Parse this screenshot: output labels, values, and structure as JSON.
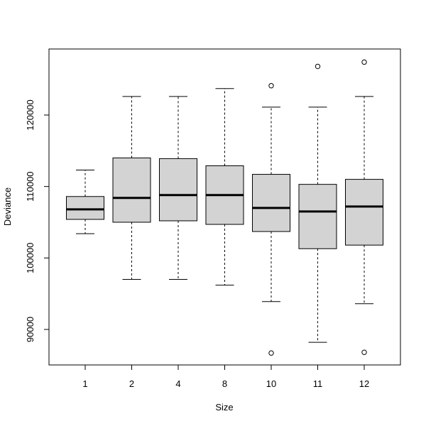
{
  "chart_data": {
    "type": "boxplot",
    "xlabel": "Size",
    "ylabel": "Deviance",
    "categories": [
      "1",
      "2",
      "4",
      "8",
      "10",
      "11",
      "12"
    ],
    "ylim": [
      85000,
      130000
    ],
    "yticks": [
      90000,
      100000,
      110000,
      120000
    ],
    "ytick_labels": [
      "90000",
      "100000",
      "110000",
      "120000"
    ],
    "box_fill": "#d3d3d3",
    "boxes": [
      {
        "label": "1",
        "whisker_low": 103400,
        "q1": 105400,
        "median": 106800,
        "q3": 108600,
        "whisker_high": 112300,
        "outliers": []
      },
      {
        "label": "2",
        "whisker_low": 97000,
        "q1": 105000,
        "median": 108400,
        "q3": 114000,
        "whisker_high": 122600,
        "outliers": []
      },
      {
        "label": "4",
        "whisker_low": 97000,
        "q1": 105200,
        "median": 108800,
        "q3": 113900,
        "whisker_high": 122600,
        "outliers": []
      },
      {
        "label": "8",
        "whisker_low": 96200,
        "q1": 104700,
        "median": 108800,
        "q3": 112900,
        "whisker_high": 123700,
        "outliers": []
      },
      {
        "label": "10",
        "whisker_low": 93900,
        "q1": 103700,
        "median": 107000,
        "q3": 111700,
        "whisker_high": 121100,
        "outliers": [
          124100,
          86700
        ]
      },
      {
        "label": "11",
        "whisker_low": 88200,
        "q1": 101300,
        "median": 106500,
        "q3": 110300,
        "whisker_high": 121100,
        "outliers": [
          126800
        ]
      },
      {
        "label": "12",
        "whisker_low": 93600,
        "q1": 101800,
        "median": 107200,
        "q3": 111000,
        "whisker_high": 122600,
        "outliers": [
          127400,
          86800
        ]
      }
    ]
  }
}
